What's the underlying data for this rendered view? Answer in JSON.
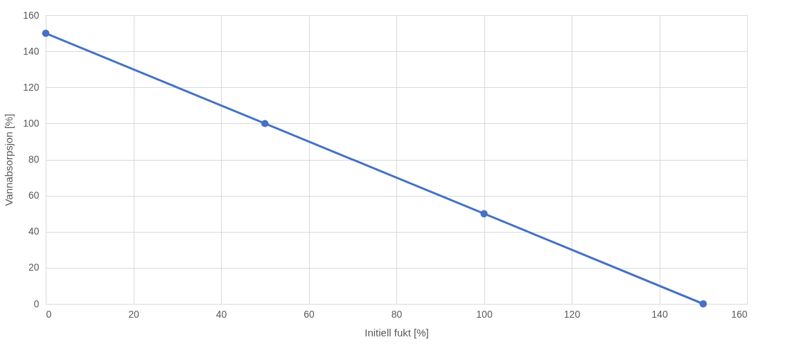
{
  "chart_data": {
    "type": "line",
    "xlabel": "Initiell fukt [%]",
    "ylabel": "Vannabsorpsjon [%]",
    "x": [
      0,
      50,
      100,
      150
    ],
    "series": [
      {
        "color": "#4472c4",
        "values": [
          150,
          100,
          50,
          0
        ]
      }
    ],
    "xlim": [
      0,
      160
    ],
    "xticks": [
      0,
      20,
      40,
      60,
      80,
      100,
      120,
      140,
      160
    ],
    "ylim": [
      0,
      160
    ],
    "yticks": [
      0,
      20,
      40,
      60,
      80,
      100,
      120,
      140,
      160
    ],
    "grid": true,
    "marker": "circle",
    "line_style": "solid"
  }
}
